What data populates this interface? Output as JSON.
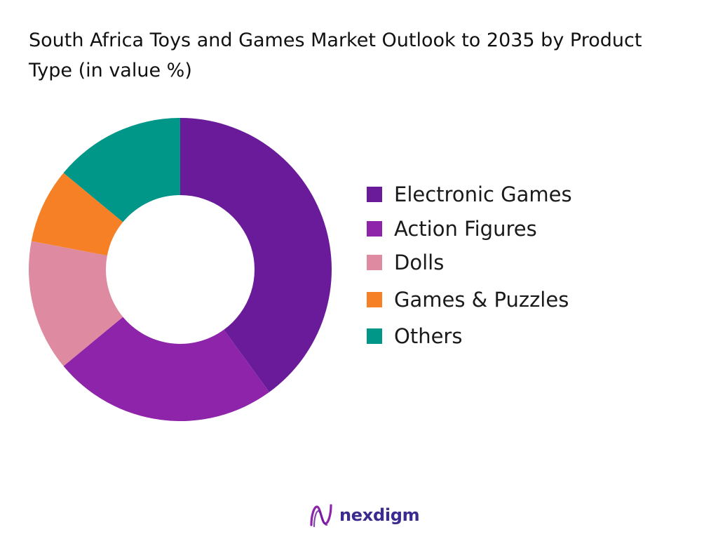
{
  "title": "South Africa Toys and Games Market Outlook to 2035 by Product Type (in value %)",
  "chart_data": {
    "type": "pie",
    "variant": "donut",
    "categories": [
      "Electronic Games",
      "Action Figures",
      "Dolls",
      "Games & Puzzles",
      "Others"
    ],
    "values": [
      40,
      24,
      14,
      8,
      14
    ],
    "colors": [
      "#6a1b9a",
      "#8e24aa",
      "#de8aa0",
      "#f58025",
      "#009688"
    ],
    "legend_position": "right"
  },
  "brand": {
    "name": "nexdigm",
    "color": "#3b2b8f"
  }
}
